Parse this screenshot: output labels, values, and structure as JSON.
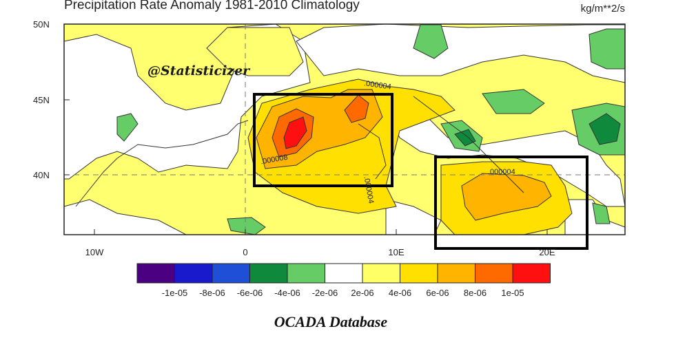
{
  "map": {
    "title": "Precipitation Rate Anomaly 1981-2010 Climatology",
    "units": "kg/m**2/s",
    "watermark": "@Statisticizer",
    "source": "OCADA Database",
    "lat_ticks": [
      "50N",
      "45N",
      "40N"
    ],
    "lon_ticks": [
      "10W",
      "0",
      "10E",
      "20E"
    ],
    "contour_labels": [
      ".000004",
      ".000008",
      ".000004",
      ".000004"
    ],
    "colorbar": {
      "colors": [
        "#4b0082",
        "#1a1acd",
        "#1f4fd6",
        "#0f8a3c",
        "#66cc66",
        "#ffffff",
        "#ffff66",
        "#ffe000",
        "#ffb400",
        "#ff6a00",
        "#ff1010"
      ],
      "labels": [
        "-1e-05",
        "-8e-06",
        "-6e-06",
        "-4e-06",
        "-2e-06",
        "2e-06",
        "4e-06",
        "6e-06",
        "8e-06",
        "1e-05"
      ]
    },
    "highlight_boxes": [
      "western-mediterranean",
      "central-mediterranean"
    ]
  }
}
